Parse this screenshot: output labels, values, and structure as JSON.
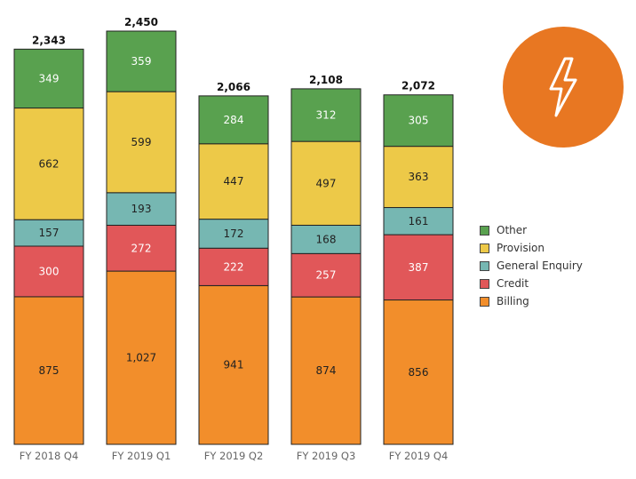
{
  "chart_data": {
    "type": "bar",
    "stacked": true,
    "categories": [
      "FY 2018 Q4",
      "FY 2019 Q1",
      "FY 2019 Q2",
      "FY 2019 Q3",
      "FY 2019 Q4"
    ],
    "series": [
      {
        "name": "Billing",
        "color": "#F28E2B",
        "values": [
          875,
          1027,
          941,
          874,
          856
        ],
        "labels": [
          "875",
          "1,027",
          "941",
          "874",
          "856"
        ],
        "label_color": "#222222"
      },
      {
        "name": "Credit",
        "color": "#E15759",
        "values": [
          300,
          272,
          222,
          257,
          387
        ],
        "labels": [
          "300",
          "272",
          "222",
          "257",
          "387"
        ],
        "label_color": "#ffffff"
      },
      {
        "name": "General Enquiry",
        "color": "#76B7B2",
        "values": [
          157,
          193,
          172,
          168,
          161
        ],
        "labels": [
          "157",
          "193",
          "172",
          "168",
          "161"
        ],
        "label_color": "#222222"
      },
      {
        "name": "Provision",
        "color": "#EDC948",
        "values": [
          662,
          599,
          447,
          497,
          363
        ],
        "labels": [
          "662",
          "599",
          "447",
          "497",
          "363"
        ],
        "label_color": "#222222"
      },
      {
        "name": "Other",
        "color": "#59A14F",
        "values": [
          349,
          359,
          284,
          312,
          305
        ],
        "labels": [
          "349",
          "359",
          "284",
          "312",
          "305"
        ],
        "label_color": "#ffffff"
      }
    ],
    "totals": [
      "2,343",
      "2,450",
      "2,066",
      "2,108",
      "2,072"
    ],
    "ylim": [
      0,
      2450
    ],
    "legend_position": "right",
    "legend_order": [
      "Other",
      "Provision",
      "General Enquiry",
      "Credit",
      "Billing"
    ],
    "grid": false
  },
  "logo": {
    "icon": "lightning-bolt-icon",
    "color": "#E87722"
  }
}
